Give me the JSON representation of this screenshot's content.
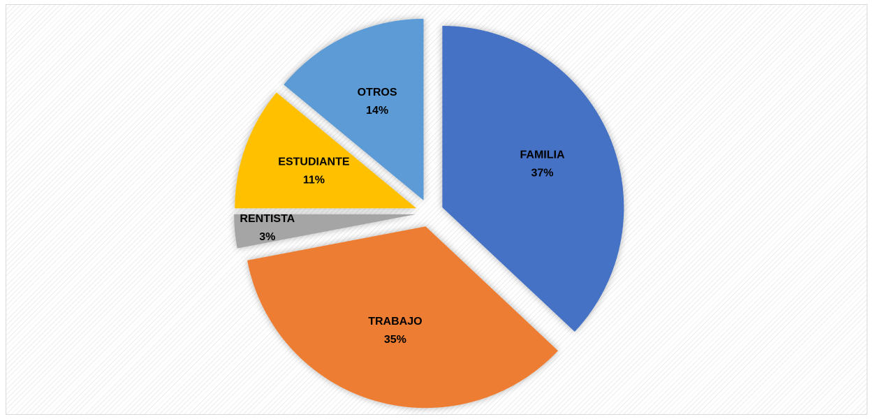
{
  "chart_data": {
    "type": "pie",
    "categories": [
      "FAMILIA",
      "TRABAJO",
      "RENTISTA",
      "ESTUDIANTE",
      "OTROS"
    ],
    "values": [
      37,
      35,
      3,
      11,
      14
    ],
    "value_labels": [
      "37%",
      "35%",
      "3%",
      "11%",
      "14%"
    ],
    "colors": [
      "#4472c4",
      "#ed7d31",
      "#a5a5a5",
      "#ffc000",
      "#5b9bd5"
    ],
    "exploded": true
  }
}
